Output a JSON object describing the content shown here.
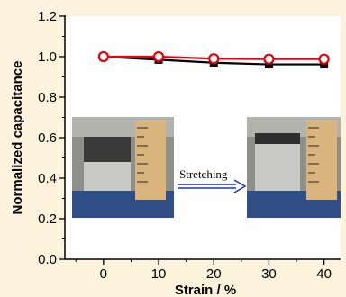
{
  "chart_data": {
    "type": "line",
    "xlabel": "Strain / %",
    "ylabel": "Normalized capacitance",
    "xlim": [
      -7,
      43
    ],
    "ylim": [
      0,
      1.2
    ],
    "x_ticks": [
      "0",
      "10",
      "20",
      "30",
      "40"
    ],
    "y_ticks": [
      "0.0",
      "0.2",
      "0.4",
      "0.6",
      "0.8",
      "1.0",
      "1.2"
    ],
    "x": [
      0,
      10,
      20,
      30,
      40
    ],
    "series": [
      {
        "values": [
          1.0,
          0.985,
          0.97,
          0.962,
          0.962
        ],
        "color": "#000000",
        "marker": "filled-square"
      },
      {
        "values": [
          1.0,
          1.0,
          0.99,
          0.988,
          0.988
        ],
        "color": "#e8000b",
        "marker": "open-circle"
      }
    ],
    "grid": false,
    "inset": {
      "arrow_label": "Stretching",
      "arrow_color": "#1c33d6",
      "description_icons": [
        "ruler-photo-before",
        "ruler-photo-after"
      ]
    }
  }
}
